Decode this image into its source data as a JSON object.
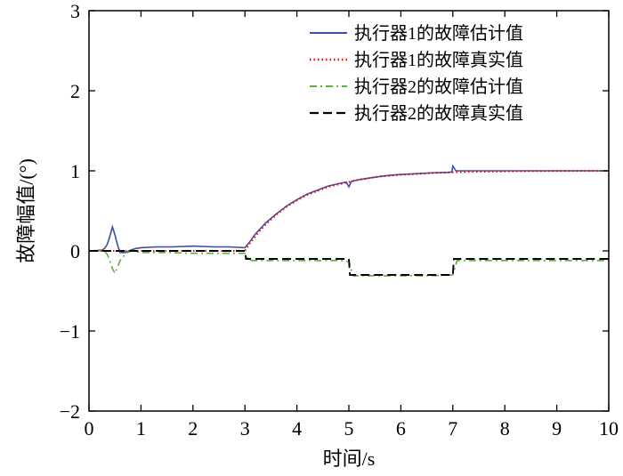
{
  "chart_data": {
    "type": "line",
    "title": "",
    "xlabel": "时间/s",
    "ylabel": "故障幅值/(°)",
    "xlim": [
      0,
      10
    ],
    "ylim": [
      -2,
      3
    ],
    "xticks": [
      0,
      1,
      2,
      3,
      4,
      5,
      6,
      7,
      8,
      9,
      10
    ],
    "yticks": [
      -2,
      -1,
      0,
      1,
      2,
      3
    ],
    "grid": false,
    "legend_position": "top-right",
    "series": [
      {
        "name": "执行器1的故障估计值",
        "color": "#3c4ea8",
        "style": "solid",
        "points": [
          [
            0,
            0
          ],
          [
            0.15,
            0.005
          ],
          [
            0.25,
            0.01
          ],
          [
            0.3,
            0.03
          ],
          [
            0.35,
            0.08
          ],
          [
            0.4,
            0.18
          ],
          [
            0.45,
            0.3
          ],
          [
            0.5,
            0.2
          ],
          [
            0.55,
            0.07
          ],
          [
            0.6,
            -0.02
          ],
          [
            0.7,
            -0.02
          ],
          [
            0.8,
            0.01
          ],
          [
            0.9,
            0.03
          ],
          [
            1.0,
            0.04
          ],
          [
            1.3,
            0.05
          ],
          [
            1.6,
            0.05
          ],
          [
            2.0,
            0.06
          ],
          [
            2.4,
            0.05
          ],
          [
            2.7,
            0.05
          ],
          [
            3.0,
            0.04
          ],
          [
            3.1,
            0.12
          ],
          [
            3.2,
            0.21
          ],
          [
            3.3,
            0.28
          ],
          [
            3.4,
            0.35
          ],
          [
            3.6,
            0.46
          ],
          [
            3.8,
            0.56
          ],
          [
            4.0,
            0.64
          ],
          [
            4.2,
            0.71
          ],
          [
            4.4,
            0.76
          ],
          [
            4.6,
            0.81
          ],
          [
            4.8,
            0.84
          ],
          [
            4.95,
            0.86
          ],
          [
            5.0,
            0.8
          ],
          [
            5.05,
            0.87
          ],
          [
            5.2,
            0.89
          ],
          [
            5.4,
            0.91
          ],
          [
            5.6,
            0.93
          ],
          [
            5.8,
            0.945
          ],
          [
            6.0,
            0.955
          ],
          [
            6.3,
            0.965
          ],
          [
            6.6,
            0.975
          ],
          [
            6.9,
            0.98
          ],
          [
            6.98,
            0.985
          ],
          [
            7.0,
            1.06
          ],
          [
            7.06,
            1.0
          ],
          [
            7.3,
            1.0
          ],
          [
            7.6,
            1.0
          ],
          [
            8.0,
            1.0
          ],
          [
            8.5,
            1.0
          ],
          [
            9.0,
            1.0
          ],
          [
            9.5,
            1.0
          ],
          [
            10,
            1.0
          ]
        ]
      },
      {
        "name": "执行器1的故障真实值",
        "color": "#ff0000",
        "style": "dotted",
        "points": [
          [
            0,
            0
          ],
          [
            0.5,
            0
          ],
          [
            1,
            0
          ],
          [
            1.5,
            0
          ],
          [
            2,
            0
          ],
          [
            2.5,
            0
          ],
          [
            3,
            0
          ],
          [
            3.1,
            0.1
          ],
          [
            3.2,
            0.18
          ],
          [
            3.3,
            0.26
          ],
          [
            3.4,
            0.33
          ],
          [
            3.6,
            0.45
          ],
          [
            3.8,
            0.55
          ],
          [
            4.0,
            0.63
          ],
          [
            4.2,
            0.7
          ],
          [
            4.4,
            0.75
          ],
          [
            4.6,
            0.8
          ],
          [
            4.8,
            0.83
          ],
          [
            5.0,
            0.86
          ],
          [
            5.2,
            0.89
          ],
          [
            5.4,
            0.91
          ],
          [
            5.6,
            0.93
          ],
          [
            5.8,
            0.94
          ],
          [
            6.0,
            0.95
          ],
          [
            6.3,
            0.96
          ],
          [
            6.6,
            0.973
          ],
          [
            7.0,
            0.982
          ],
          [
            7.5,
            0.989
          ],
          [
            8.0,
            0.993
          ],
          [
            8.5,
            0.996
          ],
          [
            9.0,
            0.998
          ],
          [
            9.5,
            0.999
          ],
          [
            10,
            1.0
          ]
        ]
      },
      {
        "name": "执行器2的故障估计值",
        "color": "#5fae3f",
        "style": "dashdot",
        "points": [
          [
            0,
            0
          ],
          [
            0.2,
            0
          ],
          [
            0.3,
            -0.01
          ],
          [
            0.35,
            -0.04
          ],
          [
            0.4,
            -0.12
          ],
          [
            0.45,
            -0.22
          ],
          [
            0.5,
            -0.28
          ],
          [
            0.55,
            -0.2
          ],
          [
            0.6,
            -0.12
          ],
          [
            0.7,
            -0.04
          ],
          [
            0.8,
            0.0
          ],
          [
            0.9,
            -0.01
          ],
          [
            1.0,
            -0.02
          ],
          [
            1.5,
            -0.02
          ],
          [
            2.0,
            -0.03
          ],
          [
            2.5,
            -0.03
          ],
          [
            3.0,
            -0.03
          ],
          [
            3.08,
            -0.12
          ],
          [
            3.3,
            -0.12
          ],
          [
            3.6,
            -0.12
          ],
          [
            4.0,
            -0.12
          ],
          [
            4.4,
            -0.12
          ],
          [
            4.8,
            -0.12
          ],
          [
            5.0,
            -0.13
          ],
          [
            5.08,
            -0.31
          ],
          [
            5.4,
            -0.31
          ],
          [
            5.8,
            -0.31
          ],
          [
            6.2,
            -0.31
          ],
          [
            6.6,
            -0.31
          ],
          [
            7.0,
            -0.3
          ],
          [
            7.08,
            -0.12
          ],
          [
            7.4,
            -0.12
          ],
          [
            7.8,
            -0.12
          ],
          [
            8.3,
            -0.12
          ],
          [
            8.8,
            -0.12
          ],
          [
            9.4,
            -0.12
          ],
          [
            10,
            -0.12
          ]
        ]
      },
      {
        "name": "执行器2的故障真实值",
        "color": "#000000",
        "style": "dashed",
        "points": [
          [
            0,
            0
          ],
          [
            3,
            0
          ],
          [
            3.02,
            -0.1
          ],
          [
            5,
            -0.1
          ],
          [
            5.02,
            -0.3
          ],
          [
            7,
            -0.3
          ],
          [
            7.02,
            -0.1
          ],
          [
            10,
            -0.1
          ]
        ]
      }
    ]
  }
}
